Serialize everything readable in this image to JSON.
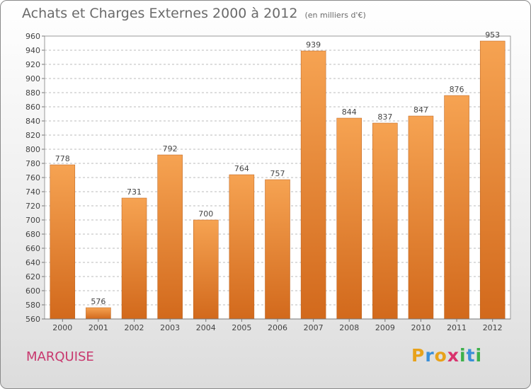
{
  "title": "Achats et Charges Externes 2000 à 2012",
  "subtitle": "(en milliers d'€)",
  "commune": "MARQUISE",
  "logo": {
    "letters": [
      "P",
      "r",
      "o",
      "x",
      "i",
      "t",
      "i"
    ],
    "colors": [
      "#e8a21b",
      "#3a8fd8",
      "#e8a21b",
      "#d9326d",
      "#3cb04a",
      "#3a8fd8",
      "#3cb04a"
    ]
  },
  "colors": {
    "bar_top": "#f6a352",
    "bar_bottom": "#d2691c",
    "grid": "#bbbbbb"
  },
  "chart_data": {
    "type": "bar",
    "categories": [
      "2000",
      "2001",
      "2002",
      "2003",
      "2004",
      "2005",
      "2006",
      "2007",
      "2008",
      "2009",
      "2010",
      "2011",
      "2012"
    ],
    "values": [
      778,
      576,
      731,
      792,
      700,
      764,
      757,
      939,
      844,
      837,
      847,
      876,
      953
    ],
    "value_labels": [
      "778",
      "576",
      "731",
      "792",
      "700",
      "764",
      "757",
      "939",
      "844",
      "837",
      "847",
      "876",
      "953"
    ],
    "ylim": [
      560,
      960
    ],
    "yticks": [
      "560",
      "580",
      "600",
      "620",
      "640",
      "660",
      "680",
      "700",
      "720",
      "740",
      "760",
      "780",
      "800",
      "820",
      "840",
      "860",
      "880",
      "900",
      "920",
      "940",
      "960"
    ],
    "grid": true
  }
}
